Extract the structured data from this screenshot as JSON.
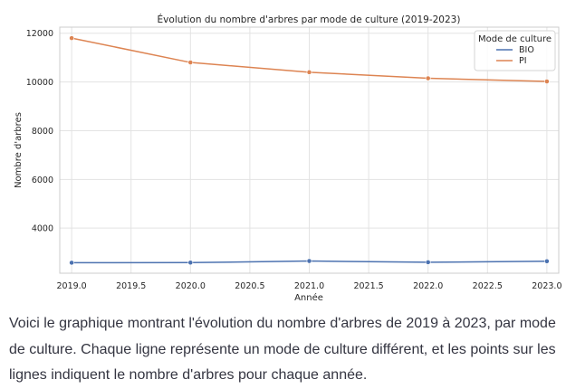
{
  "chart_data": {
    "type": "line",
    "title": "Évolution du nombre d'arbres par mode de culture (2019-2023)",
    "xlabel": "Année",
    "ylabel": "Nombre d'arbres",
    "x": [
      2019,
      2020,
      2021,
      2022,
      2023
    ],
    "xticks": [
      "2019.0",
      "2019.5",
      "2020.0",
      "2020.5",
      "2021.0",
      "2021.5",
      "2022.0",
      "2022.5",
      "2023.0"
    ],
    "xlim": [
      2018.9,
      2023.1
    ],
    "yticks": [
      4000,
      6000,
      8000,
      10000,
      12000
    ],
    "ylim": [
      2150,
      12250
    ],
    "grid": true,
    "legend": {
      "title": "Mode de culture",
      "placement": "top-right"
    },
    "series": [
      {
        "name": "BIO",
        "color": "#4c72b0",
        "values": [
          2580,
          2585,
          2650,
          2600,
          2640
        ]
      },
      {
        "name": "PI",
        "color": "#dd8452",
        "values": [
          11800,
          10800,
          10400,
          10150,
          10020
        ]
      }
    ]
  },
  "message": "Voici le graphique montrant l'évolution du nombre d'arbres de 2019 à 2023, par mode de culture. Chaque ligne représente un mode de culture différent, et les points sur les lignes indiquent le nombre d'arbres pour chaque année."
}
